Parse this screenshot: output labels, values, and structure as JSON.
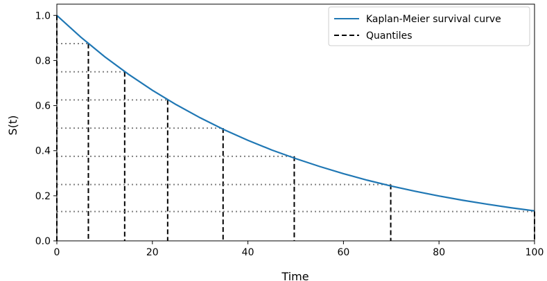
{
  "chart_data": {
    "type": "line",
    "xlabel": "Time",
    "ylabel": "S(t)",
    "xlim": [
      0,
      100
    ],
    "ylim": [
      0,
      1.05
    ],
    "x_ticks": [
      "0",
      "20",
      "40",
      "60",
      "80",
      "100"
    ],
    "y_ticks": [
      "0.0",
      "0.2",
      "0.4",
      "0.6",
      "0.8",
      "1.0"
    ],
    "legend_position": "top-right",
    "grid": false,
    "series": [
      {
        "name": "Kaplan-Meier survival curve",
        "color": "#1f77b4",
        "style": "solid",
        "x": [
          0,
          5,
          10,
          15,
          20,
          25,
          30,
          35,
          40,
          45,
          50,
          55,
          60,
          65,
          70,
          75,
          80,
          85,
          90,
          95,
          100
        ],
        "y": [
          1.0,
          0.904,
          0.817,
          0.739,
          0.668,
          0.604,
          0.546,
          0.493,
          0.446,
          0.403,
          0.365,
          0.33,
          0.298,
          0.269,
          0.243,
          0.22,
          0.199,
          0.18,
          0.163,
          0.147,
          0.133
        ]
      },
      {
        "name": "Quantiles",
        "color": "#000000",
        "style": "dashed",
        "points": [
          {
            "time": 0,
            "survival": 1.0
          },
          {
            "time": 6.6,
            "survival": 0.875
          },
          {
            "time": 14.2,
            "survival": 0.75
          },
          {
            "time": 23.2,
            "survival": 0.625
          },
          {
            "time": 34.8,
            "survival": 0.5
          },
          {
            "time": 49.7,
            "survival": 0.375
          },
          {
            "time": 69.9,
            "survival": 0.25
          },
          {
            "time": 100,
            "survival": 0.13
          }
        ]
      }
    ]
  }
}
